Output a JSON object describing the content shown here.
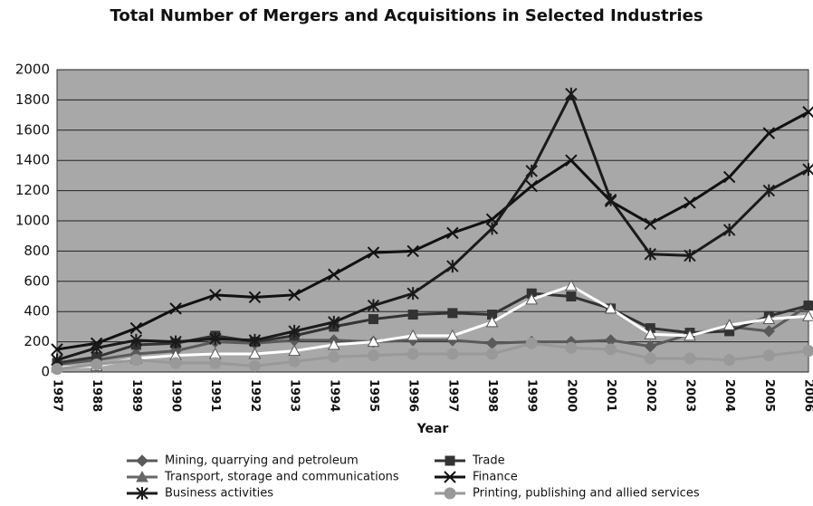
{
  "chart_data": {
    "type": "line",
    "title": "Total Number of Mergers and Acquisitions in Selected Industries",
    "xlabel": "Year",
    "categories": [
      "1987",
      "1988",
      "1989",
      "1990",
      "1991",
      "1992",
      "1993",
      "1994",
      "1995",
      "1996",
      "1997",
      "1998",
      "1999",
      "2000",
      "2001",
      "2002",
      "2003",
      "2004",
      "2005",
      "2006"
    ],
    "series": [
      {
        "name": "Mining, quarrying and petroleum",
        "color": "#5a5a5a",
        "marker": "diamond",
        "values": [
          50,
          80,
          120,
          140,
          200,
          190,
          210,
          210,
          200,
          210,
          210,
          190,
          200,
          200,
          210,
          170,
          250,
          300,
          270,
          440
        ]
      },
      {
        "name": "Trade",
        "color": "#333333",
        "marker": "square",
        "values": [
          60,
          100,
          180,
          190,
          240,
          200,
          240,
          300,
          350,
          380,
          390,
          380,
          520,
          500,
          420,
          290,
          260,
          270,
          370,
          440
        ]
      },
      {
        "name": "Transport, storage and communications",
        "color": "#ffffff",
        "marker": "triangle",
        "values": [
          30,
          40,
          90,
          110,
          120,
          120,
          140,
          180,
          200,
          240,
          240,
          330,
          480,
          570,
          420,
          250,
          240,
          310,
          350,
          370
        ]
      },
      {
        "name": "Finance",
        "color": "#111111",
        "marker": "x",
        "values": [
          150,
          190,
          290,
          420,
          510,
          495,
          510,
          645,
          790,
          800,
          920,
          1010,
          1230,
          1400,
          1130,
          980,
          1120,
          1290,
          1580,
          1720
        ]
      },
      {
        "name": "Business activities",
        "color": "#1a1a1a",
        "marker": "star",
        "values": [
          80,
          160,
          210,
          200,
          220,
          210,
          270,
          330,
          440,
          520,
          700,
          950,
          1330,
          1840,
          1140,
          780,
          770,
          940,
          1200,
          1340
        ]
      },
      {
        "name": "Printing, publishing and allied services",
        "color": "#999999",
        "marker": "circle",
        "values": [
          20,
          50,
          80,
          60,
          60,
          40,
          70,
          100,
          110,
          120,
          120,
          120,
          190,
          160,
          150,
          90,
          90,
          80,
          110,
          140
        ]
      }
    ],
    "ylim": [
      0,
      2000
    ],
    "yticks": [
      0,
      200,
      400,
      600,
      800,
      1000,
      1200,
      1400,
      1600,
      1800,
      2000
    ],
    "grid": true
  }
}
